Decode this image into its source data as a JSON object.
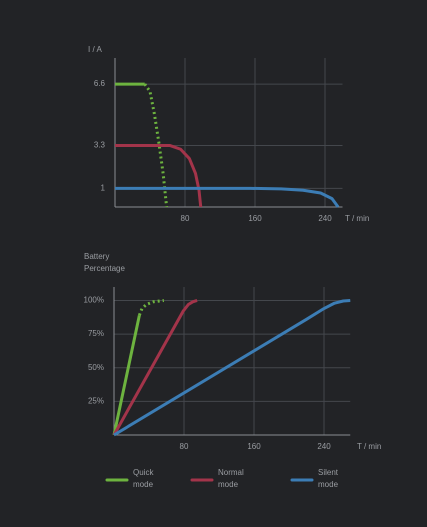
{
  "chart_data": [
    {
      "type": "line",
      "y_label": "I / A",
      "x_label": "T / min",
      "xlim": [
        0,
        260
      ],
      "xticks": [
        80,
        160,
        240
      ],
      "ylim": [
        0,
        8
      ],
      "yticks": [
        1,
        3.3,
        6.6
      ],
      "grid": true,
      "series": [
        {
          "color": "#6db33f",
          "dashed_from_x": 34,
          "x": [
            0,
            34,
            40,
            45,
            50,
            55,
            59
          ],
          "values": [
            6.6,
            6.6,
            6.2,
            5,
            3.5,
            1.8,
            0
          ]
        },
        {
          "color": "#a3344a",
          "x": [
            0,
            63,
            75,
            85,
            92,
            96,
            98
          ],
          "values": [
            3.3,
            3.3,
            3.1,
            2.6,
            1.8,
            0.9,
            0
          ]
        },
        {
          "color": "#3c7db5",
          "x": [
            0,
            155,
            190,
            215,
            235,
            248,
            255
          ],
          "values": [
            1,
            1,
            0.97,
            0.9,
            0.75,
            0.45,
            0
          ]
        }
      ]
    },
    {
      "type": "line",
      "y_label": "Battery Percentage",
      "x_label": "T / min",
      "xlim": [
        0,
        270
      ],
      "xticks": [
        80,
        160,
        240
      ],
      "ylim": [
        0,
        110
      ],
      "yticks": [
        {
          "value": 25,
          "label": "25%"
        },
        {
          "value": 50,
          "label": "50%"
        },
        {
          "value": 75,
          "label": "75%"
        },
        {
          "value": 100,
          "label": "100%"
        }
      ],
      "grid": true,
      "series": [
        {
          "name": "Quick mode",
          "color": "#6db33f",
          "dashed_from_x": 29,
          "x": [
            0,
            29,
            32,
            37,
            45,
            57
          ],
          "values": [
            0,
            89,
            94,
            97,
            99,
            100
          ]
        },
        {
          "name": "Normal mode",
          "color": "#a3344a",
          "x": [
            0,
            79,
            85,
            90,
            95
          ],
          "values": [
            0,
            92,
            97,
            99,
            100
          ]
        },
        {
          "name": "Silent mode",
          "color": "#3c7db5",
          "x": [
            0,
            220,
            240,
            252,
            262,
            270
          ],
          "values": [
            0,
            86,
            94,
            98,
            99.6,
            100
          ]
        }
      ]
    }
  ]
}
